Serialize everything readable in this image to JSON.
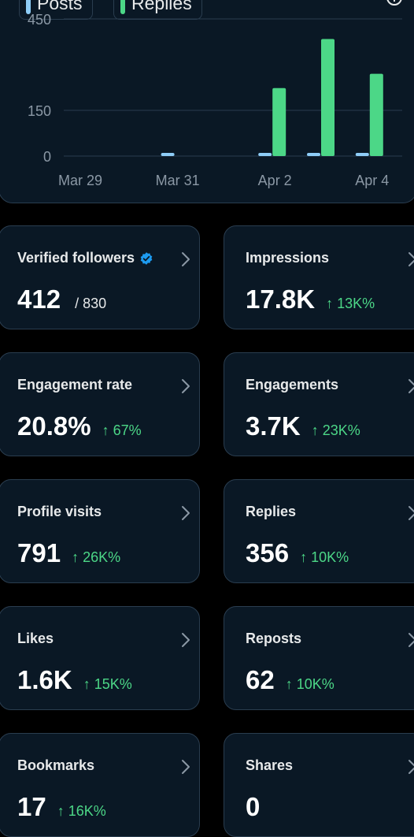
{
  "legend": {
    "posts_label": "Posts",
    "replies_label": "Replies",
    "posts_color": "#8ecdf7",
    "replies_color": "#4cd787"
  },
  "chart_data": {
    "type": "bar",
    "y_ticks": [
      0,
      150,
      450
    ],
    "ylim": [
      0,
      470
    ],
    "x_tick_labels": [
      "Mar 29",
      "Mar 31",
      "Apr 2",
      "Apr 4"
    ],
    "grid": true,
    "series": [
      {
        "name": "Posts",
        "color": "#8ecdf7",
        "values": [
          {
            "date": "2024-03-31",
            "value": 1
          },
          {
            "date": "2024-04-02",
            "value": 6
          },
          {
            "date": "2024-04-03",
            "value": 8
          },
          {
            "date": "2024-04-04",
            "value": 5
          }
        ]
      },
      {
        "name": "Replies",
        "color": "#4cd787",
        "values": [
          {
            "date": "2024-04-02",
            "value": 223
          },
          {
            "date": "2024-04-03",
            "value": 384
          },
          {
            "date": "2024-04-04",
            "value": 270
          }
        ]
      }
    ]
  },
  "stats": [
    {
      "id": "verified-followers",
      "title": "Verified followers",
      "value": "412",
      "sub": "/ 830",
      "change": "",
      "verified": true
    },
    {
      "id": "impressions",
      "title": "Impressions",
      "value": "17.8K",
      "sub": "",
      "change": "↑ 13K%"
    },
    {
      "id": "engagement-rate",
      "title": "Engagement rate",
      "value": "20.8%",
      "sub": "",
      "change": "↑ 67%"
    },
    {
      "id": "engagements",
      "title": "Engagements",
      "value": "3.7K",
      "sub": "",
      "change": "↑ 23K%"
    },
    {
      "id": "profile-visits",
      "title": "Profile visits",
      "value": "791",
      "sub": "",
      "change": "↑ 26K%"
    },
    {
      "id": "replies",
      "title": "Replies",
      "value": "356",
      "sub": "",
      "change": "↑ 10K%"
    },
    {
      "id": "likes",
      "title": "Likes",
      "value": "1.6K",
      "sub": "",
      "change": "↑ 15K%"
    },
    {
      "id": "reposts",
      "title": "Reposts",
      "value": "62",
      "sub": "",
      "change": "↑ 10K%"
    },
    {
      "id": "bookmarks",
      "title": "Bookmarks",
      "value": "17",
      "sub": "",
      "change": "↑ 16K%"
    },
    {
      "id": "shares",
      "title": "Shares",
      "value": "0",
      "sub": "",
      "change": ""
    }
  ]
}
